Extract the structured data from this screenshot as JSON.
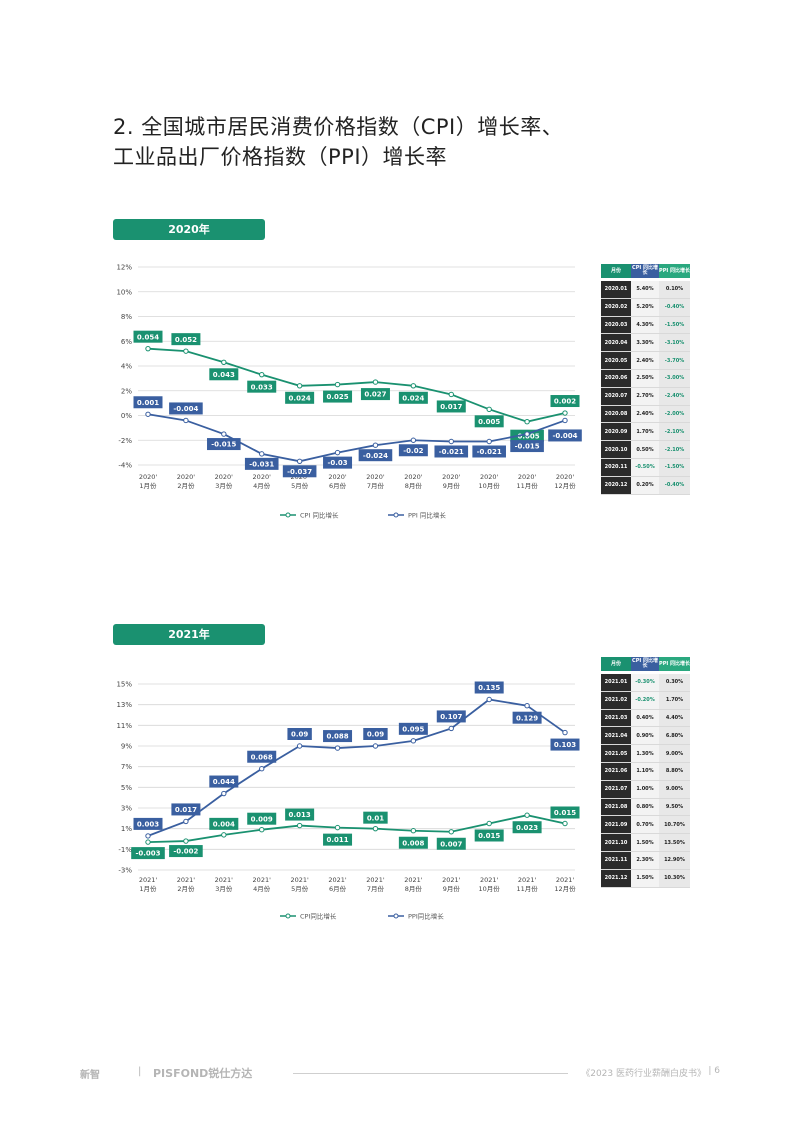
{
  "heading": {
    "line1": "2. 全国城市居民消费价格指数（CPI）增长率、",
    "line2": "工业品出厂价格指数（PPI）增长率"
  },
  "colors": {
    "cpi": "#1a9170",
    "ppi": "#3a5fa0",
    "tab": "#1a9170"
  },
  "charts": [
    {
      "tab": "2020年",
      "legend": {
        "cpi": "CPI 同比增长",
        "ppi": "PPI 同比增长"
      },
      "table": {
        "headers": [
          "月份",
          "CPI 同比增长",
          "PPI 同比增长"
        ],
        "rows": [
          [
            "2020.01",
            "5.40%",
            "0.10%"
          ],
          [
            "2020.02",
            "5.20%",
            "-0.40%"
          ],
          [
            "2020.03",
            "4.30%",
            "-1.50%"
          ],
          [
            "2020.04",
            "3.30%",
            "-3.10%"
          ],
          [
            "2020.05",
            "2.40%",
            "-3.70%"
          ],
          [
            "2020.06",
            "2.50%",
            "-3.00%"
          ],
          [
            "2020.07",
            "2.70%",
            "-2.40%"
          ],
          [
            "2020.08",
            "2.40%",
            "-2.00%"
          ],
          [
            "2020.09",
            "1.70%",
            "-2.10%"
          ],
          [
            "2020.10",
            "0.50%",
            "-2.10%"
          ],
          [
            "2020.11",
            "-0.50%",
            "-1.50%"
          ],
          [
            "2020.12",
            "0.20%",
            "-0.40%"
          ]
        ]
      }
    },
    {
      "tab": "2021年",
      "legend": {
        "cpi": "CPI同比增长",
        "ppi": "PPI同比增长"
      },
      "table": {
        "headers": [
          "月份",
          "CPI 同比增长",
          "PPI 同比增长"
        ],
        "rows": [
          [
            "2021.01",
            "-0.30%",
            "0.30%"
          ],
          [
            "2021.02",
            "-0.20%",
            "1.70%"
          ],
          [
            "2021.03",
            "0.40%",
            "4.40%"
          ],
          [
            "2021.04",
            "0.90%",
            "6.80%"
          ],
          [
            "2021.05",
            "1.30%",
            "9.00%"
          ],
          [
            "2021.06",
            "1.10%",
            "8.80%"
          ],
          [
            "2021.07",
            "1.00%",
            "9.00%"
          ],
          [
            "2021.08",
            "0.80%",
            "9.50%"
          ],
          [
            "2021.09",
            "0.70%",
            "10.70%"
          ],
          [
            "2021.10",
            "1.50%",
            "13.50%"
          ],
          [
            "2021.11",
            "2.30%",
            "12.90%"
          ],
          [
            "2021.12",
            "1.50%",
            "10.30%"
          ]
        ]
      }
    }
  ],
  "chart_data": [
    {
      "type": "line",
      "x": [
        "2020' 1月份",
        "2020' 2月份",
        "2020' 3月份",
        "2020' 4月份",
        "2020' 5月份",
        "2020' 6月份",
        "2020' 7月份",
        "2020' 8月份",
        "2020' 9月份",
        "2020' 10月份",
        "2020' 11月份",
        "2020' 12月份"
      ],
      "yticks": [
        "12%",
        "10%",
        "8%",
        "6%",
        "4%",
        "2%",
        "0%",
        "-2%",
        "-4%"
      ],
      "ylim": [
        -0.04,
        0.12
      ],
      "grid": true,
      "legend_position": "bottom-center",
      "series": [
        {
          "name": "CPI 同比增长",
          "values": [
            0.054,
            0.052,
            0.043,
            0.033,
            0.024,
            0.025,
            0.027,
            0.024,
            0.017,
            0.005,
            -0.005,
            0.002
          ],
          "labels": [
            "0.054",
            "0.052",
            "0.043",
            "0.033",
            "0.024",
            "0.025",
            "0.027",
            "0.024",
            "0.017",
            "0.005",
            "-0.005",
            "0.002"
          ]
        },
        {
          "name": "PPI 同比增长",
          "values": [
            0.001,
            -0.004,
            -0.015,
            -0.031,
            -0.037,
            -0.03,
            -0.024,
            -0.02,
            -0.021,
            -0.021,
            -0.015,
            -0.004
          ],
          "labels": [
            "0.001",
            "-0.004",
            "-0.015",
            "-0.031",
            "-0.037",
            "-0.03",
            "-0.024",
            "-0.02",
            "-0.021",
            "-0.021",
            "-0.015",
            "-0.004"
          ]
        }
      ]
    },
    {
      "type": "line",
      "x": [
        "2021' 1月份",
        "2021' 2月份",
        "2021' 3月份",
        "2021' 4月份",
        "2021' 5月份",
        "2021' 6月份",
        "2021' 7月份",
        "2021' 8月份",
        "2021' 9月份",
        "2021' 10月份",
        "2021' 11月份",
        "2021' 12月份"
      ],
      "yticks": [
        "15%",
        "13%",
        "11%",
        "9%",
        "7%",
        "5%",
        "3%",
        "1%",
        "-1%",
        "-3%"
      ],
      "ylim": [
        -0.03,
        0.15
      ],
      "grid": true,
      "legend_position": "bottom-center",
      "series": [
        {
          "name": "CPI同比增长",
          "values": [
            -0.003,
            -0.002,
            0.004,
            0.009,
            0.013,
            0.011,
            0.01,
            0.008,
            0.007,
            0.015,
            0.023,
            0.015
          ],
          "labels": [
            "-0.003",
            "-0.002",
            "0.004",
            "0.009",
            "0.013",
            "0.011",
            "0.01",
            "0.008",
            "0.007",
            "0.015",
            "0.023",
            "0.015"
          ]
        },
        {
          "name": "PPI同比增长",
          "values": [
            0.003,
            0.017,
            0.044,
            0.068,
            0.09,
            0.088,
            0.09,
            0.095,
            0.107,
            0.135,
            0.129,
            0.103
          ],
          "labels": [
            "0.003",
            "0.017",
            "0.044",
            "0.068",
            "0.09",
            "0.088",
            "0.09",
            "0.095",
            "0.107",
            "0.135",
            "0.129",
            "0.103"
          ]
        }
      ]
    }
  ],
  "footer": {
    "logo1": "新智",
    "sep": "|",
    "logo2": "PISFOND锐仕方达",
    "book": "《2023 医药行业薪酬白皮书》",
    "page_sep": "|",
    "page": "6"
  }
}
